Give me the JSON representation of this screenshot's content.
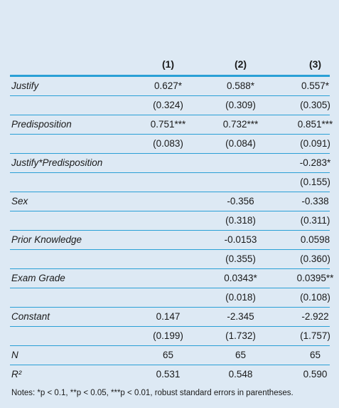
{
  "table": {
    "headers": [
      "(1)",
      "(2)",
      "(3)"
    ],
    "rows": [
      {
        "label": "Justify",
        "c1": "0.627*",
        "c2": "0.588*",
        "c3": "0.557*"
      },
      {
        "label": "",
        "c1": "(0.324)",
        "c2": "(0.309)",
        "c3": "(0.305)"
      },
      {
        "label": "Predisposition",
        "c1": "0.751***",
        "c2": "0.732***",
        "c3": "0.851***"
      },
      {
        "label": "",
        "c1": "(0.083)",
        "c2": "(0.084)",
        "c3": "(0.091)"
      },
      {
        "label": "Justify*Predisposition",
        "c1": "",
        "c2": "",
        "c3": "-0.283*"
      },
      {
        "label": "",
        "c1": "",
        "c2": "",
        "c3": "(0.155)"
      },
      {
        "label": "Sex",
        "c1": "",
        "c2": "-0.356",
        "c3": "-0.338"
      },
      {
        "label": "",
        "c1": "",
        "c2": "(0.318)",
        "c3": "(0.311)"
      },
      {
        "label": "Prior Knowledge",
        "c1": "",
        "c2": "-0.0153",
        "c3": "0.0598"
      },
      {
        "label": "",
        "c1": "",
        "c2": "(0.355)",
        "c3": "(0.360)"
      },
      {
        "label": "Exam Grade",
        "c1": "",
        "c2": "0.0343*",
        "c3": "0.0395**"
      },
      {
        "label": "",
        "c1": "",
        "c2": "(0.018)",
        "c3": "(0.108)"
      },
      {
        "label": "Constant",
        "c1": "0.147",
        "c2": "-2.345",
        "c3": "-2.922"
      },
      {
        "label": "",
        "c1": "(0.199)",
        "c2": "(1.732)",
        "c3": "(1.757)"
      },
      {
        "label": "N",
        "c1": "65",
        "c2": "65",
        "c3": "65"
      },
      {
        "label": "R²",
        "c1": "0.531",
        "c2": "0.548",
        "c3": "0.590"
      }
    ]
  },
  "notes": "Notes: *p < 0.1, **p < 0.05, ***p < 0.01, robust standard errors in parentheses.",
  "colors": {
    "background": "#dde9f4",
    "rule": "#2aa0d6"
  }
}
